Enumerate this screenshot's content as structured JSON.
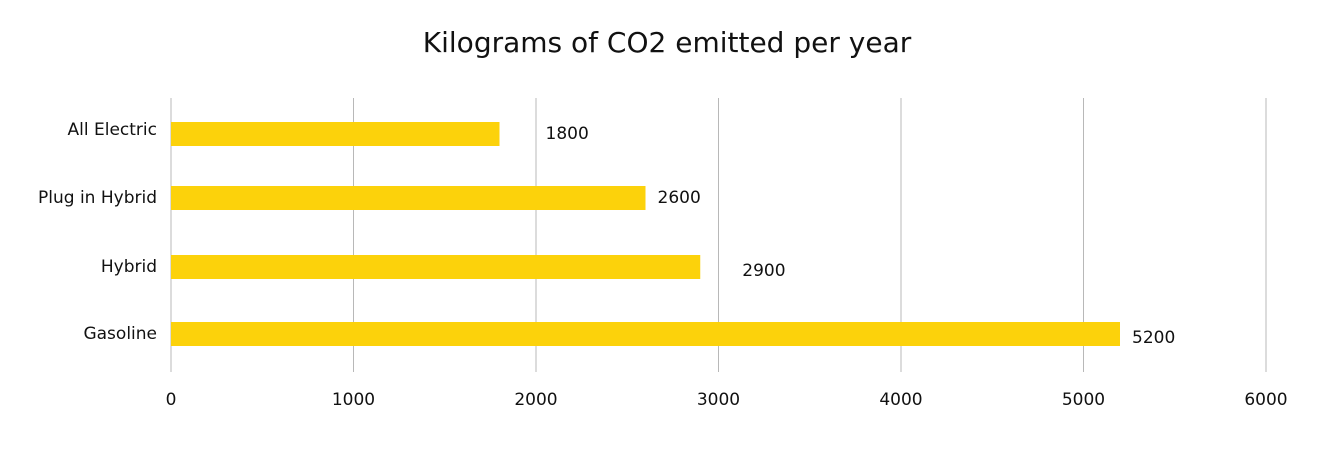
{
  "chart_data": {
    "type": "bar",
    "orientation": "horizontal",
    "title": "Kilograms of CO2 emitted per year",
    "xlabel": "",
    "ylabel": "",
    "categories": [
      "All Electric",
      "Plug in Hybrid",
      "Hybrid",
      "Gasoline"
    ],
    "values": [
      1800,
      2600,
      2900,
      5200
    ],
    "data_labels": [
      "1800",
      "2600",
      "2900",
      "5200"
    ],
    "xlim": [
      0,
      6000
    ],
    "x_ticks": [
      0,
      1000,
      2000,
      3000,
      4000,
      5000,
      6000
    ],
    "x_tick_labels": [
      "0",
      "1000",
      "2000",
      "3000",
      "4000",
      "5000",
      "6000"
    ],
    "grid": "vertical",
    "legend": "none",
    "bar_color": "#FCD20B",
    "grid_color": "#b8b8b8",
    "text_color": "#111111"
  }
}
